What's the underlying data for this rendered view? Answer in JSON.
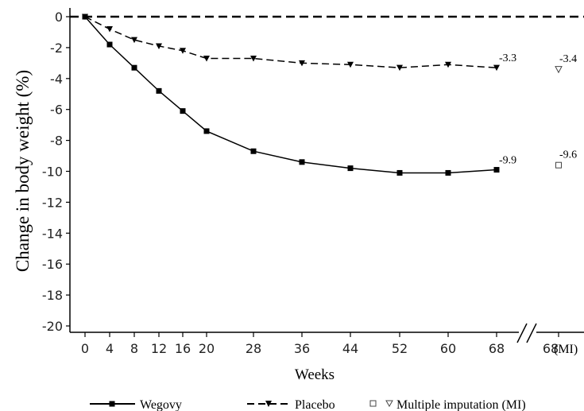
{
  "chart_data": {
    "type": "line",
    "xlabel": "Weeks",
    "ylabel": "Change in body weight (%)",
    "ylim": [
      -20,
      0
    ],
    "yticks": [
      0,
      -2,
      -4,
      -6,
      -8,
      -10,
      -12,
      -14,
      -16,
      -18,
      -20
    ],
    "xticks": [
      0,
      4,
      8,
      12,
      16,
      20,
      28,
      36,
      44,
      52,
      60,
      68
    ],
    "xtick_labels": [
      "0",
      "4",
      "8",
      "12",
      "16",
      "20",
      "28",
      "36",
      "44",
      "52",
      "60",
      "68"
    ],
    "mi_tick_label": "68",
    "mi_tick_suffix": "(MI)",
    "reference_line": 0,
    "series": [
      {
        "name": "Wegovy",
        "style": "solid",
        "marker": "square",
        "x": [
          0,
          4,
          8,
          12,
          16,
          20,
          28,
          36,
          44,
          52,
          60,
          68
        ],
        "y": [
          0,
          -1.8,
          -3.3,
          -4.8,
          -6.1,
          -7.4,
          -8.7,
          -9.4,
          -9.8,
          -10.1,
          -10.1,
          -9.9
        ],
        "end_label": "-9.9",
        "mi_value": -9.6,
        "mi_label": "-9.6"
      },
      {
        "name": "Placebo",
        "style": "dashed",
        "marker": "triangle-down",
        "x": [
          0,
          4,
          8,
          12,
          16,
          20,
          28,
          36,
          44,
          52,
          60,
          68
        ],
        "y": [
          0,
          -0.8,
          -1.5,
          -1.9,
          -2.2,
          -2.7,
          -2.7,
          -3.0,
          -3.1,
          -3.3,
          -3.1,
          -3.3
        ],
        "end_label": "-3.3",
        "mi_value": -3.4,
        "mi_label": "-3.4"
      }
    ],
    "legend": {
      "position": "bottom",
      "mi_label": "Multiple imputation (MI)"
    },
    "colors": {
      "line": "#000000",
      "axis": "#000000"
    }
  }
}
